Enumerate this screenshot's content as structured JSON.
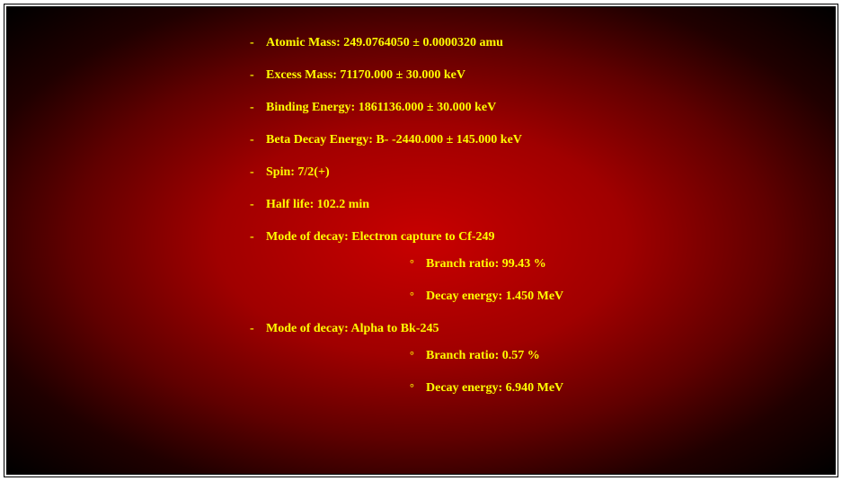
{
  "text_color": "#ffff00",
  "background": {
    "gradient_center": "#c80000",
    "gradient_mid": "#a00000",
    "gradient_outer": "#200000",
    "gradient_edge": "#000000"
  },
  "font_family": "Georgia, Times New Roman, serif",
  "font_size_pt": 14,
  "font_weight": "bold",
  "items": [
    {
      "label": "Atomic Mass: 249.0764050 ± 0.0000320 amu"
    },
    {
      "label": "Excess Mass: 71170.000 ± 30.000 keV"
    },
    {
      "label": "Binding Energy: 1861136.000 ± 30.000 keV"
    },
    {
      "label": "Beta Decay Energy: B- -2440.000 ± 145.000 keV"
    },
    {
      "label": "Spin: 7/2(+)"
    },
    {
      "label": "Half life: 102.2 min"
    },
    {
      "label": "Mode of decay: Electron capture to Cf-249",
      "sub": [
        {
          "label": "Branch ratio: 99.43 %"
        },
        {
          "label": "Decay energy: 1.450 MeV"
        }
      ]
    },
    {
      "label": "Mode of decay: Alpha to Bk-245",
      "sub": [
        {
          "label": "Branch ratio: 0.57 %"
        },
        {
          "label": "Decay energy: 6.940 MeV"
        }
      ]
    }
  ]
}
